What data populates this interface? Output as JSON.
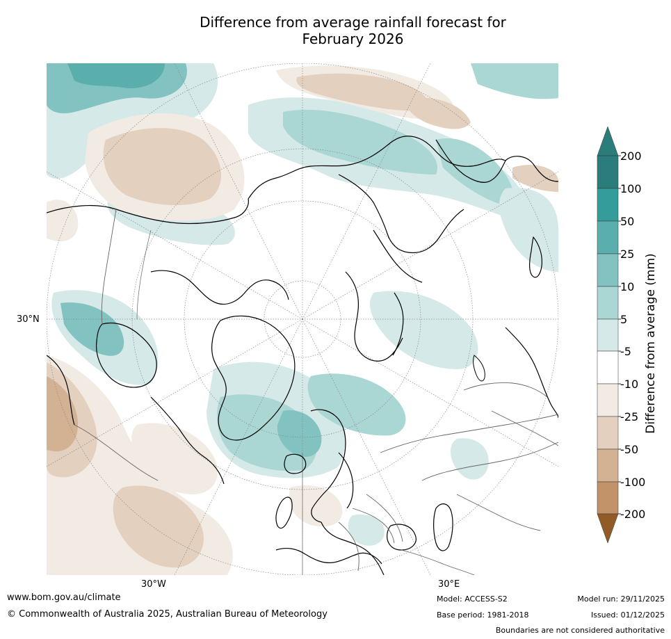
{
  "title": {
    "line1": "Difference from average rainfall forecast for",
    "line2": "February 2026"
  },
  "map": {
    "projection": "north polar stereographic",
    "labels": {
      "lat_30n": "30°N",
      "lon_30w": "30°W",
      "lon_30e": "30°E"
    },
    "colors": {
      "ocean_bg": "#ffffff",
      "coastline": "#000000",
      "border": "#666666",
      "graticule": "#888888"
    }
  },
  "colorbar": {
    "title": "Difference from average (mm)",
    "levels": [
      "200",
      "100",
      "50",
      "25",
      "10",
      "5",
      "-5",
      "-10",
      "-25",
      "-50",
      "-100",
      "-200"
    ],
    "colors": {
      "over": "#2a7d7b",
      "200_plus": "#2a7d7b",
      "100_200": "#349c9a",
      "50_100": "#5aaeac",
      "25_50": "#82c3c1",
      "10_25": "#aad6d4",
      "5_10": "#d4e9e8",
      "neutral": "#ffffff",
      "m10_m5": "#f1ebe4",
      "m25_m10": "#e3d0be",
      "m50_m25": "#d3b294",
      "m100_m50": "#c29268",
      "m200_m100": "#b07841",
      "under": "#905b26"
    }
  },
  "footer": {
    "url": "www.bom.gov.au/climate",
    "copyright": "© Commonwealth of Australia 2025, Australian Bureau of Meteorology",
    "model": "Model: ACCESS-S2",
    "base_period": "Base period: 1981-2018",
    "model_run": "Model run: 29/11/2025",
    "issued": "Issued: 01/12/2025",
    "disclaimer": "Boundaries are not considered authoritative"
  }
}
